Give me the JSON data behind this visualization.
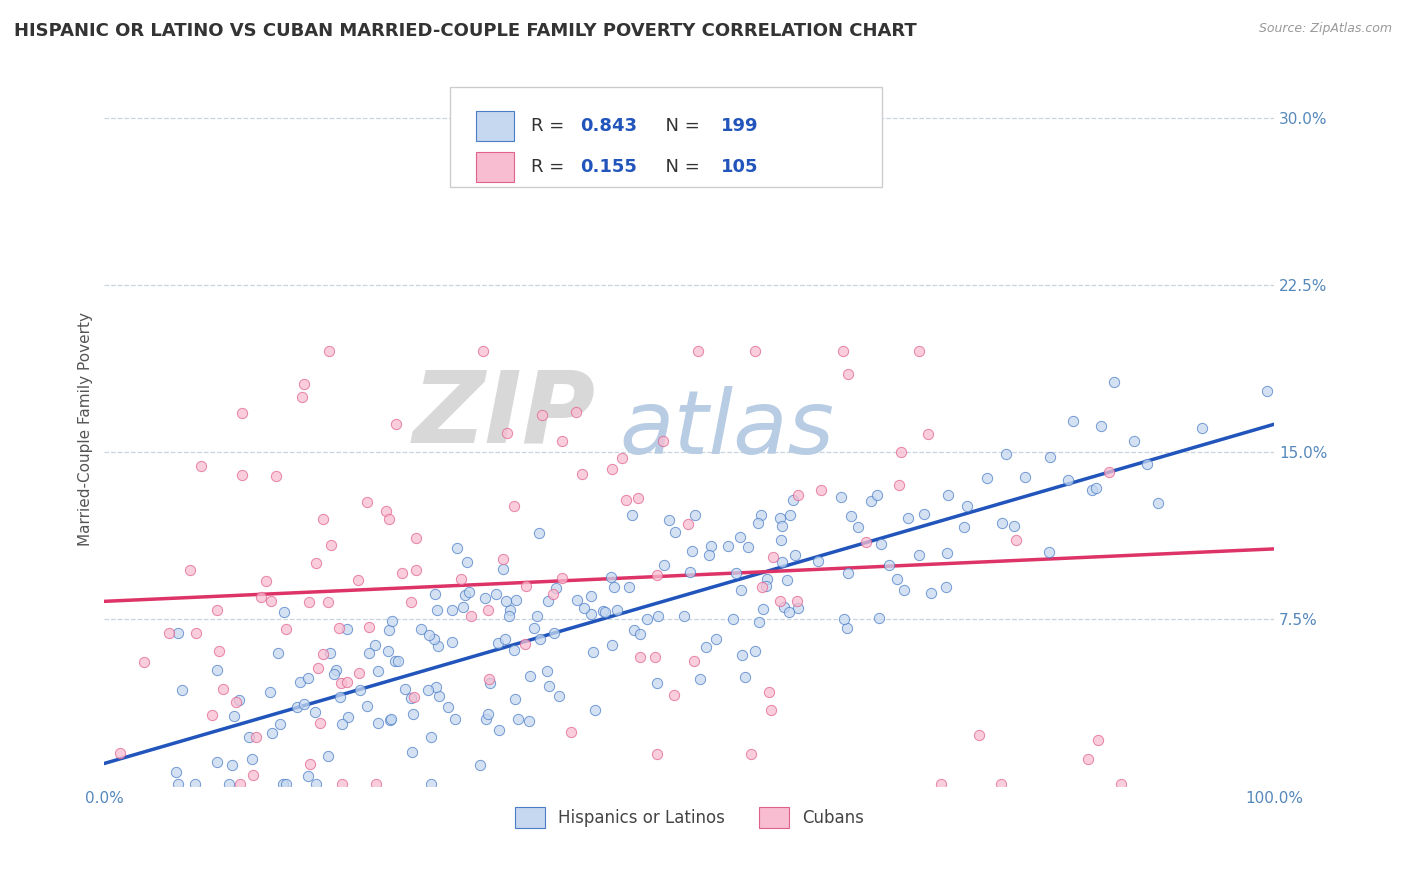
{
  "title": "HISPANIC OR LATINO VS CUBAN MARRIED-COUPLE FAMILY POVERTY CORRELATION CHART",
  "source": "Source: ZipAtlas.com",
  "ylabel": "Married-Couple Family Poverty",
  "xlim": [
    0,
    1
  ],
  "ylim": [
    0,
    0.32
  ],
  "xticks": [
    0.0,
    0.25,
    0.5,
    0.75,
    1.0
  ],
  "xticklabels": [
    "0.0%",
    "",
    "",
    "",
    "100.0%"
  ],
  "yticks": [
    0.075,
    0.15,
    0.225,
    0.3
  ],
  "yticklabels": [
    "7.5%",
    "15.0%",
    "22.5%",
    "30.0%"
  ],
  "hispanic_R": 0.843,
  "hispanic_N": 199,
  "cuban_R": 0.155,
  "cuban_N": 105,
  "blue_fill": "#c5d8f0",
  "blue_edge": "#4a7cc7",
  "pink_fill": "#f8bdd0",
  "pink_edge": "#e06090",
  "blue_line": "#2255bb",
  "pink_line": "#dd3366",
  "watermark_zip_color": "#d8d8d8",
  "watermark_atlas_color": "#b8cce4",
  "background_color": "#ffffff",
  "grid_color": "#c8d4e0",
  "tick_color": "#5588bb",
  "title_color": "#333333",
  "title_fontsize": 13,
  "axis_label_fontsize": 11,
  "tick_fontsize": 11,
  "legend_value_color": "#2255bb",
  "seed": 42
}
